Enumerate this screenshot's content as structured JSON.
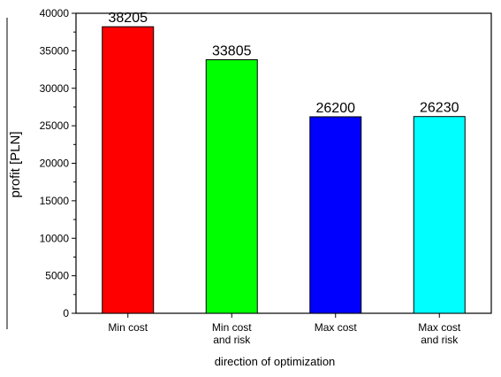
{
  "chart_data": {
    "type": "bar",
    "title": "",
    "xlabel": "direction of optimization",
    "ylabel": "profit [PLN]",
    "ylim": [
      0,
      40000
    ],
    "yticks": [
      0,
      5000,
      10000,
      15000,
      20000,
      25000,
      30000,
      35000,
      40000
    ],
    "categories": [
      [
        "Min cost"
      ],
      [
        "Min cost",
        "and risk"
      ],
      [
        "Max cost"
      ],
      [
        "Max cost",
        "and risk"
      ]
    ],
    "values": [
      38205,
      33805,
      26200,
      26230
    ],
    "data_labels": [
      "38205",
      "33805",
      "26200",
      "26230"
    ],
    "colors": [
      "#ff0000",
      "#00ff00",
      "#0000ff",
      "#00ffff"
    ],
    "grid": false,
    "legend": "none"
  }
}
